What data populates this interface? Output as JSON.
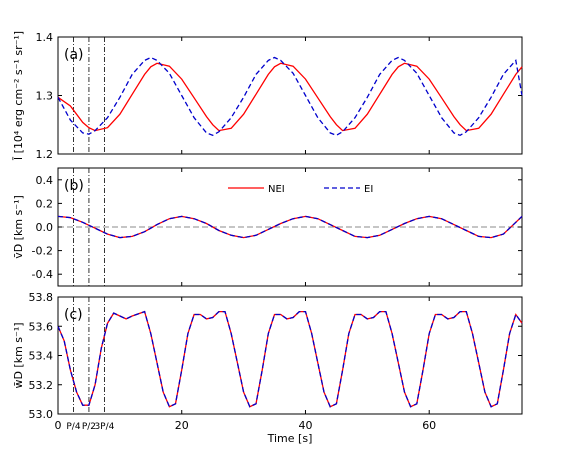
{
  "chart_data": [
    {
      "panel": "(a)",
      "type": "line",
      "ylabel": "Ī [10⁴ erg cm⁻² s⁻¹ sr⁻¹]",
      "xlim": [
        0,
        75
      ],
      "ylim": [
        1.2,
        1.4
      ],
      "yticks": [
        "1.2",
        "1.3",
        "1.4"
      ],
      "series": [
        {
          "name": "NEI",
          "color": "#ff0000",
          "style": "solid",
          "x": [
            0,
            2,
            4,
            5,
            6,
            8,
            10,
            12,
            14,
            15,
            16,
            18,
            20,
            22,
            24,
            25,
            26,
            28,
            30,
            32,
            34,
            35,
            36,
            38,
            40,
            42,
            44,
            45,
            46,
            48,
            50,
            52,
            54,
            55,
            56,
            58,
            60,
            62,
            64,
            65,
            66,
            68,
            70,
            72,
            74,
            75
          ],
          "y": [
            1.297,
            1.282,
            1.254,
            1.245,
            1.24,
            1.245,
            1.268,
            1.302,
            1.336,
            1.349,
            1.355,
            1.35,
            1.328,
            1.296,
            1.264,
            1.25,
            1.24,
            1.244,
            1.268,
            1.302,
            1.336,
            1.349,
            1.355,
            1.35,
            1.328,
            1.296,
            1.264,
            1.25,
            1.24,
            1.244,
            1.268,
            1.302,
            1.336,
            1.349,
            1.355,
            1.35,
            1.328,
            1.296,
            1.264,
            1.25,
            1.24,
            1.244,
            1.268,
            1.302,
            1.336,
            1.349
          ]
        },
        {
          "name": "EI",
          "color": "#0000cc",
          "style": "dashed",
          "x": [
            0,
            2,
            4,
            5,
            6,
            8,
            10,
            12,
            14,
            15,
            16,
            18,
            20,
            22,
            24,
            25,
            26,
            28,
            30,
            32,
            34,
            35,
            36,
            38,
            40,
            42,
            44,
            45,
            46,
            48,
            50,
            52,
            54,
            55,
            56,
            58,
            60,
            62,
            64,
            65,
            66,
            68,
            70,
            72,
            74,
            75
          ],
          "y": [
            1.297,
            1.258,
            1.236,
            1.234,
            1.24,
            1.262,
            1.297,
            1.336,
            1.36,
            1.365,
            1.36,
            1.338,
            1.3,
            1.262,
            1.236,
            1.232,
            1.238,
            1.262,
            1.297,
            1.336,
            1.36,
            1.365,
            1.36,
            1.338,
            1.3,
            1.262,
            1.236,
            1.232,
            1.238,
            1.262,
            1.297,
            1.336,
            1.36,
            1.365,
            1.36,
            1.338,
            1.3,
            1.262,
            1.236,
            1.232,
            1.238,
            1.262,
            1.297,
            1.336,
            1.36,
            1.3
          ]
        }
      ]
    },
    {
      "panel": "(b)",
      "type": "line",
      "ylabel": "v̄D [km s⁻¹]",
      "xlim": [
        0,
        75
      ],
      "ylim": [
        -0.5,
        0.5
      ],
      "yticks": [
        "-0.4",
        "-0.2",
        "0.0",
        "0.2",
        "0.4"
      ],
      "reference_line": 0.0,
      "series": [
        {
          "name": "NEI",
          "color": "#ff0000",
          "style": "solid",
          "x": [
            0,
            2,
            4,
            6,
            8,
            10,
            12,
            14,
            16,
            18,
            20,
            22,
            24,
            26,
            28,
            30,
            32,
            34,
            36,
            38,
            40,
            42,
            44,
            46,
            48,
            50,
            52,
            54,
            56,
            58,
            60,
            62,
            64,
            66,
            68,
            70,
            72,
            74,
            75
          ],
          "y": [
            0.09,
            0.08,
            0.04,
            -0.01,
            -0.06,
            -0.09,
            -0.08,
            -0.04,
            0.02,
            0.07,
            0.09,
            0.07,
            0.03,
            -0.03,
            -0.07,
            -0.09,
            -0.07,
            -0.02,
            0.03,
            0.07,
            0.09,
            0.07,
            0.02,
            -0.03,
            -0.08,
            -0.09,
            -0.07,
            -0.02,
            0.03,
            0.07,
            0.09,
            0.07,
            0.02,
            -0.03,
            -0.08,
            -0.09,
            -0.06,
            0.04,
            0.09
          ]
        },
        {
          "name": "EI",
          "color": "#0000cc",
          "style": "dashed",
          "x": [
            0,
            2,
            4,
            6,
            8,
            10,
            12,
            14,
            16,
            18,
            20,
            22,
            24,
            26,
            28,
            30,
            32,
            34,
            36,
            38,
            40,
            42,
            44,
            46,
            48,
            50,
            52,
            54,
            56,
            58,
            60,
            62,
            64,
            66,
            68,
            70,
            72,
            74,
            75
          ],
          "y": [
            0.09,
            0.08,
            0.04,
            -0.01,
            -0.06,
            -0.09,
            -0.08,
            -0.04,
            0.02,
            0.07,
            0.09,
            0.07,
            0.03,
            -0.03,
            -0.07,
            -0.09,
            -0.07,
            -0.02,
            0.03,
            0.07,
            0.09,
            0.07,
            0.02,
            -0.03,
            -0.08,
            -0.09,
            -0.07,
            -0.02,
            0.03,
            0.07,
            0.09,
            0.07,
            0.02,
            -0.03,
            -0.08,
            -0.09,
            -0.06,
            0.04,
            0.09
          ]
        }
      ]
    },
    {
      "panel": "(c)",
      "type": "line",
      "ylabel": "w̄D [km s⁻¹]",
      "xlabel": "Time [s]",
      "xlim": [
        0,
        75
      ],
      "ylim": [
        53.0,
        53.8
      ],
      "yticks": [
        "53.0",
        "53.2",
        "53.4",
        "53.6",
        "53.8"
      ],
      "series": [
        {
          "name": "NEI",
          "color": "#ff0000",
          "style": "solid",
          "x": [
            0,
            1,
            2,
            3,
            4,
            5,
            6,
            7,
            8,
            9,
            10,
            11,
            12,
            14,
            15,
            16,
            17,
            18,
            19,
            20,
            21,
            22,
            23,
            24,
            25,
            26,
            27,
            28,
            29,
            30,
            31,
            32,
            33,
            34,
            35,
            36,
            37,
            38,
            39,
            40,
            41,
            42,
            43,
            44,
            45,
            46,
            47,
            48,
            49,
            50,
            51,
            52,
            53,
            54,
            55,
            56,
            57,
            58,
            59,
            60,
            61,
            62,
            63,
            64,
            65,
            66,
            67,
            68,
            69,
            70,
            71,
            72,
            73,
            74,
            75
          ],
          "y": [
            53.6,
            53.5,
            53.3,
            53.15,
            53.06,
            53.06,
            53.2,
            53.45,
            53.62,
            53.69,
            53.67,
            53.65,
            53.67,
            53.7,
            53.55,
            53.35,
            53.15,
            53.05,
            53.07,
            53.3,
            53.55,
            53.68,
            53.68,
            53.65,
            53.66,
            53.7,
            53.7,
            53.55,
            53.35,
            53.15,
            53.05,
            53.07,
            53.3,
            53.55,
            53.68,
            53.68,
            53.65,
            53.66,
            53.7,
            53.7,
            53.55,
            53.35,
            53.15,
            53.05,
            53.07,
            53.3,
            53.55,
            53.68,
            53.68,
            53.65,
            53.66,
            53.7,
            53.7,
            53.55,
            53.35,
            53.15,
            53.05,
            53.07,
            53.3,
            53.55,
            53.68,
            53.68,
            53.65,
            53.66,
            53.7,
            53.7,
            53.55,
            53.35,
            53.15,
            53.05,
            53.07,
            53.3,
            53.55,
            53.68,
            53.62
          ]
        },
        {
          "name": "EI",
          "color": "#0000cc",
          "style": "dashed",
          "x": [
            0,
            1,
            2,
            3,
            4,
            5,
            6,
            7,
            8,
            9,
            10,
            11,
            12,
            14,
            15,
            16,
            17,
            18,
            19,
            20,
            21,
            22,
            23,
            24,
            25,
            26,
            27,
            28,
            29,
            30,
            31,
            32,
            33,
            34,
            35,
            36,
            37,
            38,
            39,
            40,
            41,
            42,
            43,
            44,
            45,
            46,
            47,
            48,
            49,
            50,
            51,
            52,
            53,
            54,
            55,
            56,
            57,
            58,
            59,
            60,
            61,
            62,
            63,
            64,
            65,
            66,
            67,
            68,
            69,
            70,
            71,
            72,
            73,
            74,
            75
          ],
          "y": [
            53.6,
            53.5,
            53.3,
            53.15,
            53.06,
            53.06,
            53.2,
            53.45,
            53.62,
            53.69,
            53.67,
            53.65,
            53.67,
            53.7,
            53.55,
            53.35,
            53.15,
            53.05,
            53.07,
            53.3,
            53.55,
            53.68,
            53.68,
            53.65,
            53.66,
            53.7,
            53.7,
            53.55,
            53.35,
            53.15,
            53.05,
            53.07,
            53.3,
            53.55,
            53.68,
            53.68,
            53.65,
            53.66,
            53.7,
            53.7,
            53.55,
            53.35,
            53.15,
            53.05,
            53.07,
            53.3,
            53.55,
            53.68,
            53.68,
            53.65,
            53.66,
            53.7,
            53.7,
            53.55,
            53.35,
            53.15,
            53.05,
            53.07,
            53.3,
            53.55,
            53.68,
            53.68,
            53.65,
            53.66,
            53.7,
            53.7,
            53.55,
            53.35,
            53.15,
            53.05,
            53.07,
            53.3,
            53.55,
            53.68,
            53.62
          ]
        }
      ]
    }
  ],
  "x_axis": {
    "label": "Time [s]",
    "ticks": [
      {
        "value": 0,
        "label": "0"
      },
      {
        "value": 20,
        "label": "20"
      },
      {
        "value": 40,
        "label": "40"
      },
      {
        "value": 60,
        "label": "60"
      }
    ],
    "period_markers": [
      {
        "value": 2.5,
        "label": "P/4"
      },
      {
        "value": 5,
        "label": "P/2"
      },
      {
        "value": 7.5,
        "label": "3P/4"
      }
    ]
  },
  "legend": {
    "position": "top-center",
    "panel": "(b)",
    "entries": [
      "NEI",
      "EI"
    ]
  }
}
